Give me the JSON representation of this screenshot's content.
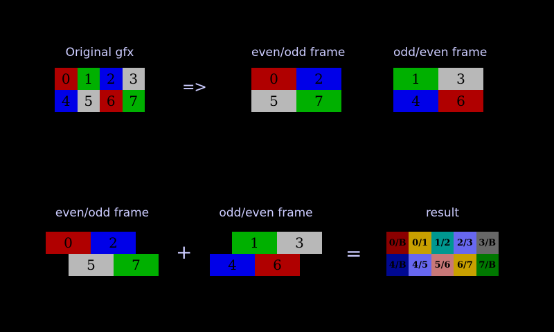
{
  "colors": {
    "background": "#000000",
    "label_text": "#ccccff",
    "cell_text": "#000000",
    "red": "#b00000",
    "green": "#00b000",
    "blue": "#0000e8",
    "gray": "#b8b8b8"
  },
  "top_section": {
    "original": {
      "label": "Original gfx",
      "rows": [
        [
          {
            "label": "0",
            "color": "red"
          },
          {
            "label": "1",
            "color": "green"
          },
          {
            "label": "2",
            "color": "blue"
          },
          {
            "label": "3",
            "color": "gray"
          }
        ],
        [
          {
            "label": "4",
            "color": "blue"
          },
          {
            "label": "5",
            "color": "gray"
          },
          {
            "label": "6",
            "color": "red"
          },
          {
            "label": "7",
            "color": "green"
          }
        ]
      ]
    },
    "arrow": "=>",
    "even_odd_frame": {
      "label": "even/odd frame",
      "rows": [
        [
          {
            "label": "0",
            "color": "red"
          },
          {
            "label": "2",
            "color": "blue"
          }
        ],
        [
          {
            "label": "5",
            "color": "gray"
          },
          {
            "label": "7",
            "color": "green"
          }
        ]
      ]
    },
    "odd_even_frame": {
      "label": "odd/even frame",
      "rows": [
        [
          {
            "label": "1",
            "color": "green"
          },
          {
            "label": "3",
            "color": "gray"
          }
        ],
        [
          {
            "label": "4",
            "color": "blue"
          },
          {
            "label": "6",
            "color": "red"
          }
        ]
      ]
    }
  },
  "bottom_section": {
    "even_odd_frame": {
      "label": "even/odd frame",
      "rows": [
        [
          {
            "label": "0",
            "color": "red"
          },
          {
            "label": "2",
            "color": "blue"
          }
        ],
        [
          {
            "label": "5",
            "color": "gray"
          },
          {
            "label": "7",
            "color": "green"
          }
        ]
      ]
    },
    "plus": "+",
    "odd_even_frame": {
      "label": "odd/even frame",
      "rows": [
        [
          {
            "label": "1",
            "color": "green"
          },
          {
            "label": "3",
            "color": "gray"
          }
        ],
        [
          {
            "label": "4",
            "color": "blue"
          },
          {
            "label": "6",
            "color": "red"
          }
        ]
      ]
    },
    "equals": "=",
    "result": {
      "label": "result",
      "rows": [
        [
          {
            "label": "0/B",
            "color": "#8b0000"
          },
          {
            "label": "0/1",
            "color": "#c8a000"
          },
          {
            "label": "1/2",
            "color": "#009890"
          },
          {
            "label": "2/3",
            "color": "#6868f0"
          },
          {
            "label": "3/B",
            "color": "#686868"
          }
        ],
        [
          {
            "label": "4/B",
            "color": "#000890"
          },
          {
            "label": "4/5",
            "color": "#6868f0"
          },
          {
            "label": "5/6",
            "color": "#c87878"
          },
          {
            "label": "6/7",
            "color": "#c8a000"
          },
          {
            "label": "7/B",
            "color": "#007800"
          }
        ]
      ]
    }
  }
}
